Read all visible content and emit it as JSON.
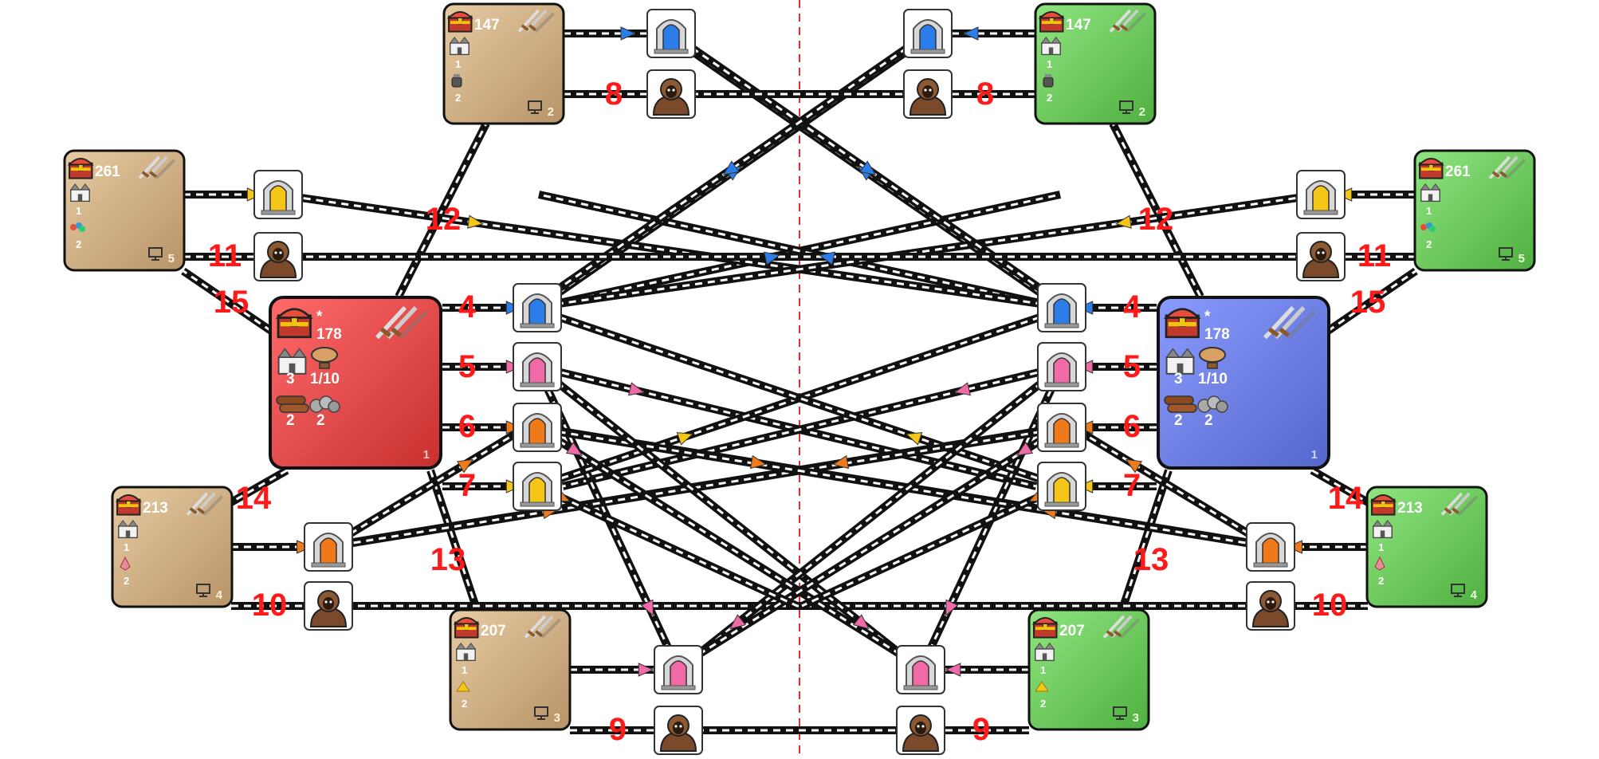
{
  "colors": {
    "red_player": "#e04444",
    "blue_player": "#6b7de8",
    "tan_neutral": "#d2b48c",
    "green_neutral": "#6fcf5f",
    "route_label": "#ff1a1a",
    "gate_blue": "#2b7de9",
    "gate_pink": "#f06aa8",
    "gate_orange": "#f07a1a",
    "gate_yellow": "#f5c518"
  },
  "players": [
    {
      "side": "left",
      "color": "red",
      "gold": "178",
      "star": "*",
      "castles": "3",
      "airship": "1/10",
      "wood": "2",
      "ore": "2",
      "player_no": "1"
    },
    {
      "side": "right",
      "color": "blue",
      "gold": "178",
      "star": "*",
      "castles": "3",
      "airship": "1/10",
      "wood": "2",
      "ore": "2",
      "player_no": "1"
    }
  ],
  "neutral_tiles": [
    {
      "id": "l2",
      "color": "tan",
      "gold": "147",
      "castles": "1",
      "resource_icon": "mercury-cauldron-icon",
      "resource": "2",
      "ai_no": "2"
    },
    {
      "id": "l5",
      "color": "tan",
      "gold": "261",
      "castles": "1",
      "resource_icon": "gems-icon",
      "resource": "2",
      "ai_no": "5"
    },
    {
      "id": "l4",
      "color": "tan",
      "gold": "213",
      "castles": "1",
      "resource_icon": "crystal-icon",
      "resource": "2",
      "ai_no": "4"
    },
    {
      "id": "l3",
      "color": "tan",
      "gold": "207",
      "castles": "1",
      "resource_icon": "sulfur-icon",
      "resource": "2",
      "ai_no": "3"
    },
    {
      "id": "r2",
      "color": "green",
      "gold": "147",
      "castles": "1",
      "resource_icon": "mercury-cauldron-icon",
      "resource": "2",
      "ai_no": "2"
    },
    {
      "id": "r5",
      "color": "green",
      "gold": "261",
      "castles": "1",
      "resource_icon": "gems-icon",
      "resource": "2",
      "ai_no": "5"
    },
    {
      "id": "r4",
      "color": "green",
      "gold": "213",
      "castles": "1",
      "resource_icon": "crystal-icon",
      "resource": "2",
      "ai_no": "4"
    },
    {
      "id": "r3",
      "color": "green",
      "gold": "207",
      "castles": "1",
      "resource_icon": "sulfur-icon",
      "resource": "2",
      "ai_no": "3"
    }
  ],
  "route_labels": {
    "l4": "4",
    "l5": "5",
    "l6": "6",
    "l7": "7",
    "l8": "8",
    "l9": "9",
    "l10": "10",
    "l11": "11",
    "l12": "12",
    "l13": "13",
    "l14": "14",
    "l15": "15",
    "r4": "4",
    "r5": "5",
    "r6": "6",
    "r7": "7",
    "r8": "8",
    "r9": "9",
    "r10": "10",
    "r11": "11",
    "r12": "12",
    "r13": "13",
    "r14": "14",
    "r15": "15"
  },
  "gates": [
    "blue",
    "pink",
    "orange",
    "yellow"
  ],
  "guards": [
    "guard-icon"
  ],
  "icons": {
    "treasure": "treasure-chest-icon",
    "swords": "crossed-swords-icon",
    "castle": "castle-icon",
    "airship": "airship-icon",
    "wood": "wood-logs-icon",
    "ore": "ore-pile-icon",
    "ai_marker": "computer-monitor-icon"
  }
}
